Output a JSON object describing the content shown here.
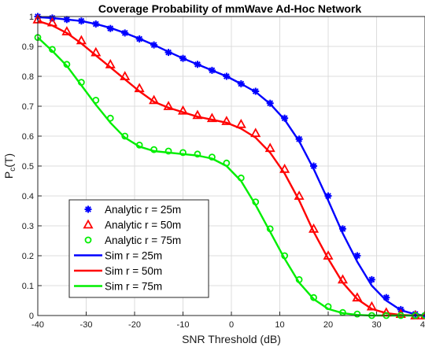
{
  "chart_data": {
    "type": "line",
    "title": "Coverage Probability of mmWave Ad-Hoc Network",
    "xlabel": "SNR Threshold (dB)",
    "ylabel_main": "P",
    "ylabel_sub": "c",
    "ylabel_tail": "(T)",
    "xlim": [
      -40,
      40
    ],
    "ylim": [
      0,
      1
    ],
    "xticks": [
      -40,
      -30,
      -20,
      -10,
      0,
      10,
      20,
      30,
      40
    ],
    "yticks": [
      0,
      0.1,
      0.2,
      0.3,
      0.4,
      0.5,
      0.6,
      0.7,
      0.8,
      0.9,
      1
    ],
    "ytick_labels": [
      "0",
      "0.1",
      "0.2",
      "0.3",
      "0.4",
      "0.5",
      "0.6",
      "0.7",
      "0.8",
      "0.9",
      "1"
    ],
    "grid": true,
    "legend_position": "bottom-left",
    "series": [
      {
        "name": "Analytic r = 25m",
        "style": "marker",
        "marker": "asterisk",
        "color": "#0000ff",
        "x": [
          -40,
          -37,
          -34,
          -31,
          -28,
          -25,
          -22,
          -19,
          -16,
          -13,
          -10,
          -7,
          -4,
          -1,
          2,
          5,
          8,
          11,
          14,
          17,
          20,
          23,
          26,
          29,
          32,
          35,
          38,
          40
        ],
        "y": [
          1.0,
          0.995,
          0.99,
          0.985,
          0.975,
          0.96,
          0.945,
          0.925,
          0.905,
          0.88,
          0.86,
          0.84,
          0.82,
          0.8,
          0.775,
          0.75,
          0.71,
          0.66,
          0.59,
          0.5,
          0.4,
          0.29,
          0.2,
          0.12,
          0.06,
          0.02,
          0.005,
          0.0
        ]
      },
      {
        "name": "Analytic r = 50m",
        "style": "marker",
        "marker": "triangle",
        "color": "#ff0000",
        "x": [
          -40,
          -37,
          -34,
          -31,
          -28,
          -25,
          -22,
          -19,
          -16,
          -13,
          -10,
          -7,
          -4,
          -1,
          2,
          5,
          8,
          11,
          14,
          17,
          20,
          23,
          26,
          29,
          32,
          35,
          38,
          40
        ],
        "y": [
          0.99,
          0.98,
          0.95,
          0.92,
          0.88,
          0.84,
          0.8,
          0.76,
          0.72,
          0.7,
          0.685,
          0.67,
          0.66,
          0.65,
          0.64,
          0.61,
          0.56,
          0.49,
          0.4,
          0.29,
          0.2,
          0.12,
          0.06,
          0.03,
          0.01,
          0.005,
          0.0,
          0.0
        ]
      },
      {
        "name": "Analytic r = 75m",
        "style": "marker",
        "marker": "circle",
        "color": "#00ee00",
        "x": [
          -40,
          -37,
          -34,
          -31,
          -28,
          -25,
          -22,
          -19,
          -16,
          -13,
          -10,
          -7,
          -4,
          -1,
          2,
          5,
          8,
          11,
          14,
          17,
          20,
          23,
          26,
          29,
          32,
          35,
          38,
          40
        ],
        "y": [
          0.93,
          0.89,
          0.84,
          0.78,
          0.72,
          0.66,
          0.6,
          0.57,
          0.555,
          0.55,
          0.545,
          0.54,
          0.53,
          0.51,
          0.46,
          0.38,
          0.29,
          0.2,
          0.12,
          0.06,
          0.03,
          0.01,
          0.005,
          0.0,
          0.0,
          0.0,
          0.0,
          0.0
        ]
      },
      {
        "name": "Sim r = 25m",
        "style": "line",
        "color": "#0000ff",
        "x": [
          -40,
          -37,
          -34,
          -31,
          -28,
          -25,
          -22,
          -19,
          -16,
          -13,
          -10,
          -7,
          -4,
          -1,
          2,
          5,
          8,
          11,
          14,
          17,
          20,
          23,
          26,
          29,
          32,
          35,
          38,
          40
        ],
        "y": [
          0.998,
          0.995,
          0.99,
          0.985,
          0.975,
          0.962,
          0.945,
          0.926,
          0.905,
          0.882,
          0.86,
          0.84,
          0.82,
          0.8,
          0.775,
          0.748,
          0.708,
          0.655,
          0.583,
          0.49,
          0.385,
          0.275,
          0.18,
          0.1,
          0.05,
          0.018,
          0.004,
          0.0
        ]
      },
      {
        "name": "Sim r = 50m",
        "style": "line",
        "color": "#ff0000",
        "x": [
          -40,
          -37,
          -34,
          -31,
          -28,
          -25,
          -22,
          -19,
          -16,
          -13,
          -10,
          -7,
          -4,
          -1,
          2,
          5,
          8,
          11,
          14,
          17,
          20,
          23,
          26,
          29,
          32,
          35,
          38,
          40
        ],
        "y": [
          0.985,
          0.97,
          0.945,
          0.91,
          0.87,
          0.83,
          0.79,
          0.75,
          0.715,
          0.695,
          0.68,
          0.665,
          0.655,
          0.645,
          0.625,
          0.595,
          0.545,
          0.475,
          0.385,
          0.28,
          0.19,
          0.11,
          0.055,
          0.022,
          0.008,
          0.002,
          0.0,
          0.0
        ]
      },
      {
        "name": "Sim r = 75m",
        "style": "line",
        "color": "#00ee00",
        "x": [
          -40,
          -37,
          -34,
          -31,
          -28,
          -25,
          -22,
          -19,
          -16,
          -13,
          -10,
          -7,
          -4,
          -1,
          2,
          5,
          8,
          11,
          14,
          17,
          20,
          23,
          26,
          29,
          32,
          35,
          38,
          40
        ],
        "y": [
          0.93,
          0.885,
          0.835,
          0.77,
          0.705,
          0.645,
          0.595,
          0.565,
          0.55,
          0.545,
          0.54,
          0.535,
          0.525,
          0.5,
          0.45,
          0.37,
          0.28,
          0.19,
          0.11,
          0.055,
          0.022,
          0.008,
          0.002,
          0.0,
          0.0,
          0.0,
          0.0,
          0.0
        ]
      }
    ]
  }
}
